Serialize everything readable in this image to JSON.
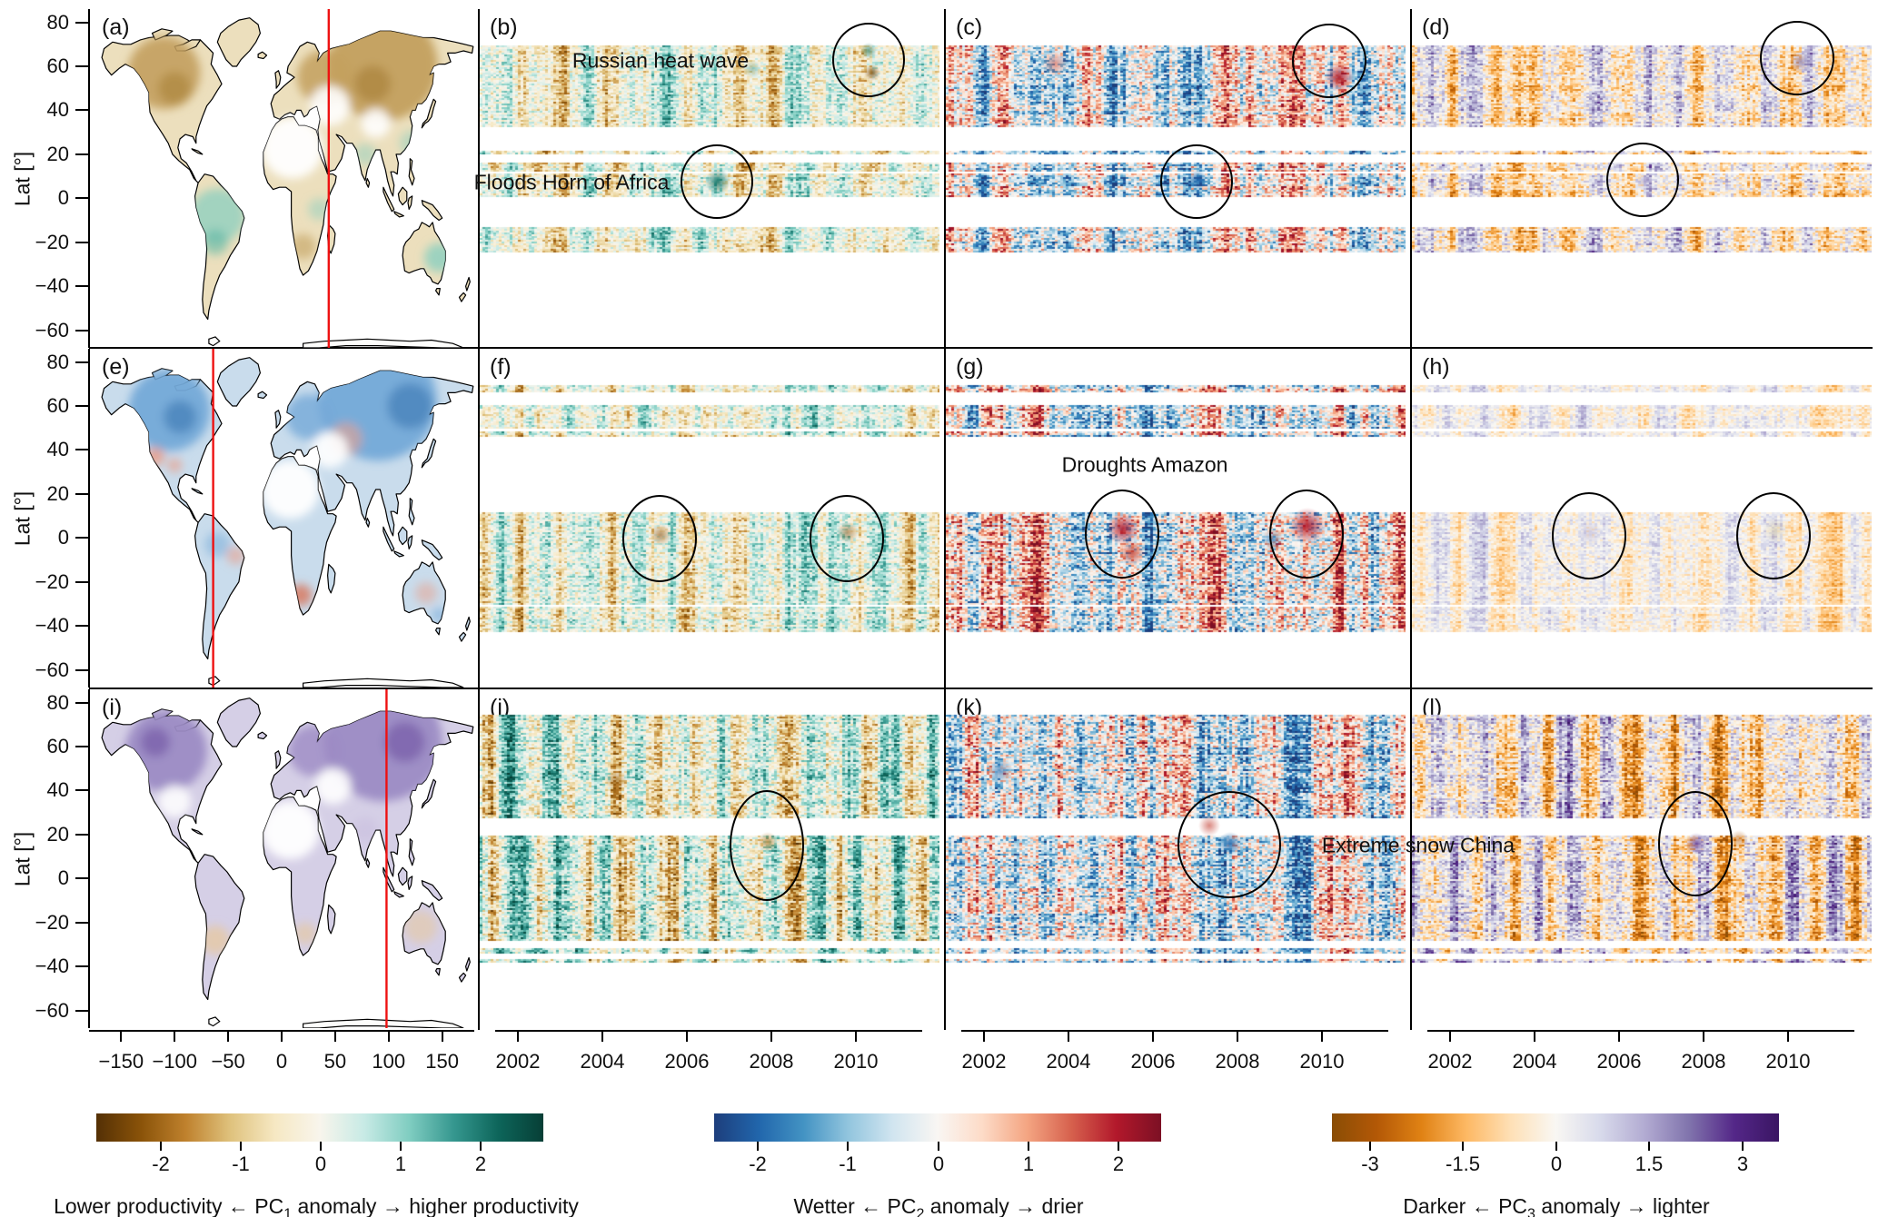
{
  "figure": {
    "ylabel": "Lat [°]",
    "lat_ticks": [
      80,
      60,
      40,
      20,
      0,
      -20,
      -40,
      -60
    ],
    "map_lon_ticks": [
      -150,
      -100,
      -50,
      0,
      50,
      100,
      150
    ],
    "year_ticks": [
      2002,
      2004,
      2006,
      2008,
      2010
    ]
  },
  "panels": [
    {
      "label": "(a)",
      "type": "map"
    },
    {
      "label": "(b)",
      "type": "hovmoller"
    },
    {
      "label": "(c)",
      "type": "hovmoller"
    },
    {
      "label": "(d)",
      "type": "hovmoller"
    },
    {
      "label": "(e)",
      "type": "map"
    },
    {
      "label": "(f)",
      "type": "hovmoller"
    },
    {
      "label": "(g)",
      "type": "hovmoller"
    },
    {
      "label": "(h)",
      "type": "hovmoller"
    },
    {
      "label": "(i)",
      "type": "map"
    },
    {
      "label": "(j)",
      "type": "hovmoller"
    },
    {
      "label": "(k)",
      "type": "hovmoller"
    },
    {
      "label": "(l)",
      "type": "hovmoller"
    }
  ],
  "rows": [
    {
      "pc": "PC1",
      "red_line_lon": 44
    },
    {
      "pc": "PC2",
      "red_line_lon": -64
    },
    {
      "pc": "PC3",
      "red_line_lon": 98
    }
  ],
  "annotations": [
    {
      "text": "Russian heat wave"
    },
    {
      "text": "Floods Horn of Africa"
    },
    {
      "text": "Droughts Amazon"
    },
    {
      "text": "Extreme snow China"
    }
  ],
  "colorbars": [
    {
      "ticks": [
        "-2",
        "-1",
        "0",
        "1",
        "2"
      ],
      "caption_pre": "Lower productivity ← PC",
      "caption_sub": "1",
      "caption_post": " anomaly → higher productivity",
      "stops": [
        "#543005",
        "#8a5309",
        "#bf812d",
        "#dfc27d",
        "#f6e8c3",
        "#f8f5ec",
        "#c7eae5",
        "#80cdc1",
        "#35978f",
        "#0d655a",
        "#073f36"
      ]
    },
    {
      "ticks": [
        "-2",
        "-1",
        "0",
        "1",
        "2"
      ],
      "caption_pre": "Wetter ← PC",
      "caption_sub": "2",
      "caption_post": " anomaly → drier",
      "stops": [
        "#1d3e7c",
        "#2166ac",
        "#4393c3",
        "#92c5de",
        "#d1e5f0",
        "#f9f6f3",
        "#fddbc7",
        "#f4a582",
        "#d6604d",
        "#b2182b",
        "#7c1024"
      ]
    },
    {
      "ticks": [
        "-3",
        "-1.5",
        "0",
        "1.5",
        "3"
      ],
      "caption_pre": "Darker ← PC",
      "caption_sub": "3",
      "caption_post": " anomaly → lighter",
      "stops": [
        "#8a4d05",
        "#b35806",
        "#e08214",
        "#fdb863",
        "#fee0b6",
        "#f9f7f3",
        "#d8daeb",
        "#b2abd2",
        "#8073ac",
        "#542788",
        "#3a1563"
      ]
    }
  ],
  "chart_data": {
    "type": "heatmap",
    "layout": "3 rows x 4 columns; column 1: global anomaly maps with red meridian line; columns 2-4: latitude-time Hovmoller diagrams of PC1, PC2, PC3 anomalies at that meridian",
    "rows": [
      {
        "map_panel": "a",
        "map_variable": "PC1 anomaly",
        "hovmoller_panels": [
          "b",
          "c",
          "d"
        ],
        "red_line_longitude_deg": 44
      },
      {
        "map_panel": "e",
        "map_variable": "PC2 anomaly",
        "hovmoller_panels": [
          "f",
          "g",
          "h"
        ],
        "red_line_longitude_deg": -64
      },
      {
        "map_panel": "i",
        "map_variable": "PC3 anomaly",
        "hovmoller_panels": [
          "j",
          "k",
          "l"
        ],
        "red_line_longitude_deg": 98
      }
    ],
    "hovmoller_columns": [
      {
        "panels": [
          "b",
          "f",
          "j"
        ],
        "variable": "PC1 anomaly",
        "colormap": "brown-white-teal",
        "range": [
          -2.5,
          2.5
        ]
      },
      {
        "panels": [
          "c",
          "g",
          "k"
        ],
        "variable": "PC2 anomaly",
        "colormap": "blue-white-red",
        "range": [
          -2.5,
          2.5
        ]
      },
      {
        "panels": [
          "d",
          "h",
          "l"
        ],
        "variable": "PC3 anomaly",
        "colormap": "orange-white-purple",
        "range": [
          -3.5,
          3.5
        ]
      }
    ],
    "x_axis": {
      "maps_longitude_ticks": [
        -150,
        -100,
        -50,
        0,
        50,
        100,
        150
      ],
      "hovmoller_year_ticks": [
        2002,
        2004,
        2006,
        2008,
        2010
      ],
      "hovmoller_year_range": [
        2001,
        2012
      ]
    },
    "y_axis": {
      "label": "Lat [°]",
      "ticks": [
        80,
        60,
        40,
        20,
        0,
        -20,
        -40,
        -60
      ],
      "range": [
        -68,
        86
      ]
    },
    "events": [
      {
        "label": "Russian heat wave",
        "circled_in_row": 1,
        "approx_year": 2010.2,
        "approx_lat_deg": 55
      },
      {
        "label": "Floods Horn of Africa",
        "circled_in_row": 1,
        "approx_year": 2006.7,
        "approx_lat_deg": 5
      },
      {
        "label": "Droughts Amazon",
        "circled_in_row": 2,
        "approx_years": [
          2005.3,
          2009.6
        ],
        "approx_lat_deg": -2
      },
      {
        "label": "Extreme snow China",
        "circled_in_row": 3,
        "approx_year": 2008.0,
        "approx_lat_deg": 28
      }
    ],
    "colorbars": [
      {
        "label": "Lower productivity ← PC1 anomaly → higher productivity",
        "ticks": [
          -2,
          -1,
          0,
          1,
          2
        ]
      },
      {
        "label": "Wetter ← PC2 anomaly → drier",
        "ticks": [
          -2,
          -1,
          0,
          1,
          2
        ]
      },
      {
        "label": "Darker ← PC3 anomaly → lighter",
        "ticks": [
          -3,
          -1.5,
          0,
          1.5,
          3
        ]
      }
    ]
  }
}
